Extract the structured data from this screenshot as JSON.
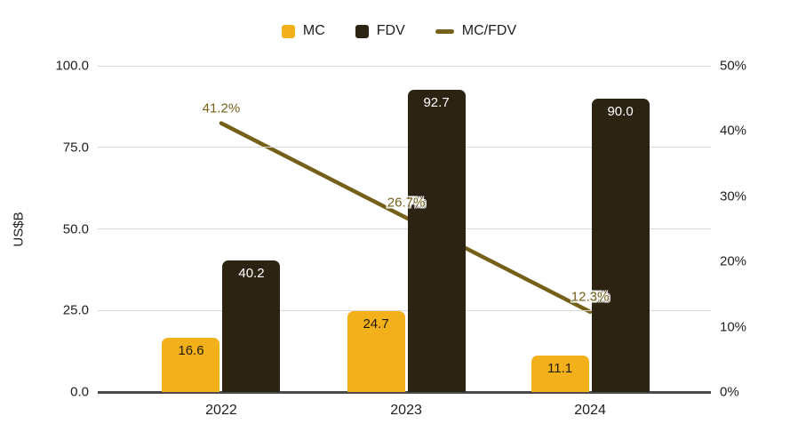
{
  "chart_data": {
    "type": "bar",
    "subtype": "grouped-bar-with-line-combo",
    "categories": [
      "2022",
      "2023",
      "2024"
    ],
    "series": [
      {
        "name": "MC",
        "kind": "bar",
        "axis": "left",
        "values": [
          16.6,
          24.7,
          11.1
        ],
        "value_labels": [
          "16.6",
          "24.7",
          "11.1"
        ],
        "color": "#F2B01B",
        "label_color": "#211B06"
      },
      {
        "name": "FDV",
        "kind": "bar",
        "axis": "left",
        "values": [
          40.2,
          92.7,
          90.0
        ],
        "value_labels": [
          "40.2",
          "92.7",
          "90.0"
        ],
        "color": "#2D2313",
        "label_color": "#FFFFFF"
      },
      {
        "name": "MC/FDV",
        "kind": "line",
        "axis": "right",
        "values": [
          41.2,
          26.7,
          12.3
        ],
        "value_labels": [
          "41.2%",
          "26.7%",
          "12.3%"
        ],
        "color": "#75601A",
        "label_color": "#75601A"
      }
    ],
    "left_axis": {
      "title": "US$B",
      "min": 0,
      "max": 100,
      "tick_values": [
        0,
        25,
        50,
        75,
        100
      ],
      "tick_labels": [
        "0.0",
        "25.0",
        "50.0",
        "75.0",
        "100.0"
      ]
    },
    "right_axis": {
      "min": 0,
      "max": 50,
      "tick_values": [
        0,
        10,
        20,
        30,
        40,
        50
      ],
      "tick_labels": [
        "0%",
        "10%",
        "20%",
        "30%",
        "40%",
        "50%"
      ]
    },
    "grid": "horizontal gridlines at left-axis ticks",
    "legend_position": "top-center"
  },
  "legend": {
    "items": [
      {
        "label": "MC",
        "swatch": "square",
        "color": "#F2B01B"
      },
      {
        "label": "FDV",
        "swatch": "square",
        "color": "#2D2313"
      },
      {
        "label": "MC/FDV",
        "swatch": "dash",
        "color": "#75601A"
      }
    ]
  },
  "colors": {
    "background": "#FFFFFF",
    "gridline": "#D9D9D9",
    "axis_line": "#4A4A4A",
    "text": "#1F1F1F"
  }
}
